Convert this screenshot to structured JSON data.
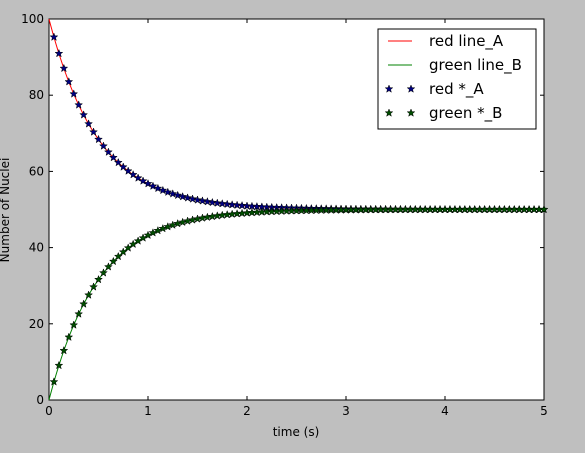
{
  "chart_data": {
    "type": "line",
    "xlabel": "time (s)",
    "ylabel": "Number of Nuclei",
    "xlim": [
      0,
      5
    ],
    "ylim": [
      0,
      100
    ],
    "xticks": [
      "0",
      "1",
      "2",
      "3",
      "4",
      "5"
    ],
    "yticks": [
      "0",
      "20",
      "40",
      "60",
      "80",
      "100"
    ],
    "grid": false,
    "legend_position": "top-right",
    "model": "A(t) = 50 + 50*exp(-2t), B(t) = 50 - 50*exp(-2t)",
    "series": [
      {
        "name": "red line_A",
        "style": "line",
        "color": "#ff0000",
        "x": [
          0,
          0.25,
          0.5,
          0.75,
          1,
          1.5,
          2,
          2.5,
          3,
          3.5,
          4,
          4.5,
          5
        ],
        "y": [
          100,
          80.3,
          68.4,
          61.2,
          56.8,
          52.5,
          50.9,
          50.3,
          50.1,
          50.0,
          50.0,
          50.0,
          50.0
        ]
      },
      {
        "name": "green line_B",
        "style": "line",
        "color": "#008000",
        "x": [
          0,
          0.25,
          0.5,
          0.75,
          1,
          1.5,
          2,
          2.5,
          3,
          3.5,
          4,
          4.5,
          5
        ],
        "y": [
          0,
          19.7,
          31.6,
          38.8,
          43.2,
          47.5,
          49.1,
          49.7,
          49.9,
          50.0,
          50.0,
          50.0,
          50.0
        ]
      },
      {
        "name": "red *_A",
        "style": "marker",
        "color": "#000080",
        "x_start": 0.05,
        "x_step": 0.05,
        "count": 100,
        "y_start_sample": [
          95.2,
          90.9,
          87.0,
          83.5,
          80.3
        ]
      },
      {
        "name": "green *_B",
        "style": "marker",
        "color": "#004d00",
        "x_start": 0.05,
        "x_step": 0.05,
        "count": 100,
        "y_start_sample": [
          4.8,
          9.1,
          13.0,
          16.5,
          19.7
        ]
      }
    ]
  }
}
